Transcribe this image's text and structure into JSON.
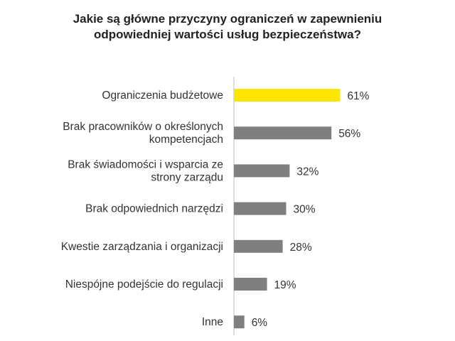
{
  "title_lines": [
    "Jakie są główne przyczyny ograniczeń w zapewnieniu",
    "odpowiedniej wartości usług bezpieczeństwa?"
  ],
  "colors": {
    "highlight": "#FFE600",
    "bar": "#7F7F7F",
    "text": "#333333"
  },
  "chart_data": {
    "type": "bar",
    "orientation": "horizontal",
    "title": "Jakie są główne przyczyny ograniczeń w zapewnieniu odpowiedniej wartości usług bezpieczeństwa?",
    "categories": [
      [
        "Ograniczenia budżetowe"
      ],
      [
        "Brak pracowników o określonych",
        "kompetencjach"
      ],
      [
        "Brak świadomości i wsparcia ze",
        "strony zarządu"
      ],
      [
        "Brak odpowiednich narzędzi"
      ],
      [
        "Kwestie zarządzania i organizacji"
      ],
      [
        "Niespójne podejście do regulacji"
      ],
      [
        "Inne"
      ]
    ],
    "values": [
      61,
      56,
      32,
      30,
      28,
      19,
      6
    ],
    "value_labels": [
      "61%",
      "56%",
      "32%",
      "30%",
      "28%",
      "19%",
      "6%"
    ],
    "highlight_index": 0,
    "xlim": [
      0,
      100
    ],
    "grid": false,
    "legend": "none"
  }
}
